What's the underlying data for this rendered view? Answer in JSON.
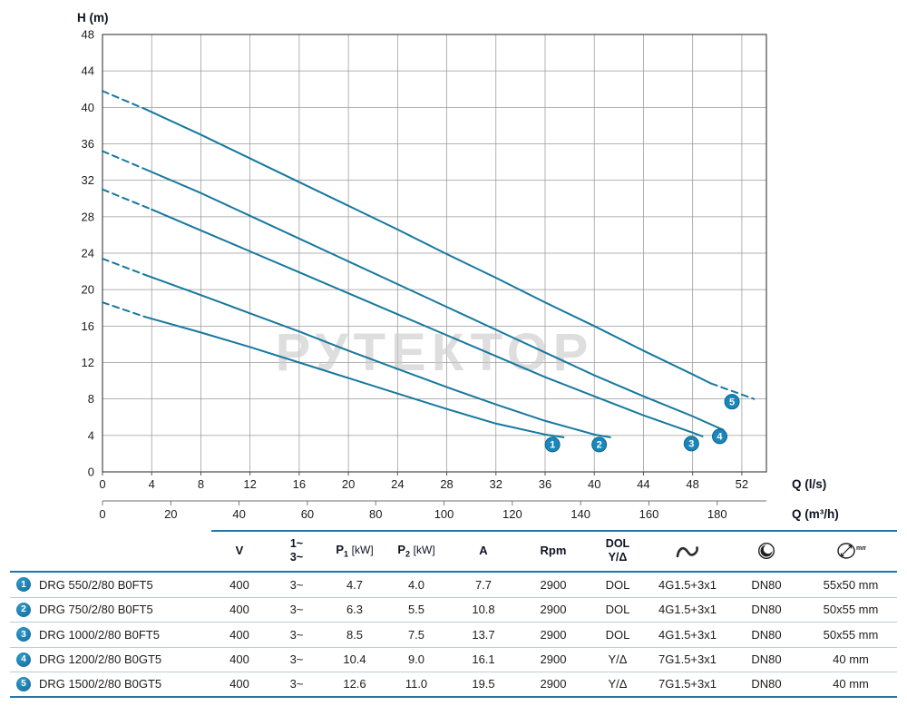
{
  "chart": {
    "y_label": "H (m)",
    "x_label_primary": "Q (l/s)",
    "x_label_secondary": "Q (m³/h)",
    "watermark": "РУТЕКТОР",
    "y_max": 48,
    "x_max": 54,
    "y_ticks": [
      0,
      4,
      8,
      12,
      16,
      20,
      24,
      28,
      32,
      36,
      40,
      44,
      48
    ],
    "x_ticks": [
      0,
      4,
      8,
      12,
      16,
      20,
      24,
      28,
      32,
      36,
      40,
      44,
      48,
      52
    ],
    "x2_ticks": [
      0,
      20,
      40,
      60,
      80,
      100,
      120,
      140,
      160,
      180
    ],
    "x2_to_lps": 0.27778,
    "curve_color": "#17789f",
    "badge_color": "#1a86ba"
  },
  "chart_data": {
    "type": "line",
    "title": "",
    "xlabel": "Q (l/s) / Q (m³/h)",
    "ylabel": "H (m)",
    "xlim": [
      0,
      54
    ],
    "ylim": [
      0,
      48
    ],
    "grid": true,
    "series": [
      {
        "name": "1",
        "model": "DRG 550/2/80 B0FT5",
        "marker": {
          "x": 36.6,
          "y": 3.0
        },
        "segments": [
          {
            "style": "dashed",
            "points": [
              [
                0,
                18.6
              ],
              [
                3.5,
                17.0
              ]
            ]
          },
          {
            "style": "solid",
            "points": [
              [
                3.5,
                17.0
              ],
              [
                8,
                15.3
              ],
              [
                12,
                13.7
              ],
              [
                16,
                12.0
              ],
              [
                20,
                10.3
              ],
              [
                24,
                8.6
              ],
              [
                28,
                6.9
              ],
              [
                32,
                5.3
              ],
              [
                36,
                4.1
              ],
              [
                37.5,
                3.8
              ]
            ]
          }
        ]
      },
      {
        "name": "2",
        "model": "DRG 750/2/80 B0FT5",
        "marker": {
          "x": 40.4,
          "y": 3.0
        },
        "segments": [
          {
            "style": "dashed",
            "points": [
              [
                0,
                23.4
              ],
              [
                3.5,
                21.6
              ]
            ]
          },
          {
            "style": "solid",
            "points": [
              [
                3.5,
                21.6
              ],
              [
                8,
                19.4
              ],
              [
                12,
                17.4
              ],
              [
                16,
                15.4
              ],
              [
                20,
                13.3
              ],
              [
                24,
                11.3
              ],
              [
                28,
                9.3
              ],
              [
                32,
                7.4
              ],
              [
                36,
                5.6
              ],
              [
                40,
                4.1
              ],
              [
                41.3,
                3.8
              ]
            ]
          }
        ]
      },
      {
        "name": "3",
        "model": "DRG 1000/2/80 B0FT5",
        "marker": {
          "x": 47.9,
          "y": 3.1
        },
        "segments": [
          {
            "style": "dashed",
            "points": [
              [
                0,
                31.0
              ],
              [
                4,
                28.8
              ]
            ]
          },
          {
            "style": "solid",
            "points": [
              [
                4,
                28.8
              ],
              [
                8,
                26.5
              ],
              [
                12,
                24.2
              ],
              [
                16,
                21.9
              ],
              [
                20,
                19.6
              ],
              [
                24,
                17.3
              ],
              [
                28,
                15.0
              ],
              [
                32,
                12.7
              ],
              [
                36,
                10.4
              ],
              [
                40,
                8.3
              ],
              [
                44,
                6.2
              ],
              [
                48,
                4.3
              ],
              [
                48.8,
                3.9
              ]
            ]
          }
        ]
      },
      {
        "name": "4",
        "model": "DRG 1200/2/80 B0GT5",
        "marker": {
          "x": 50.2,
          "y": 3.9
        },
        "segments": [
          {
            "style": "dashed",
            "points": [
              [
                0,
                35.2
              ],
              [
                3.5,
                33.2
              ]
            ]
          },
          {
            "style": "solid",
            "points": [
              [
                3.5,
                33.2
              ],
              [
                8,
                30.6
              ],
              [
                12,
                28.1
              ],
              [
                16,
                25.6
              ],
              [
                20,
                23.1
              ],
              [
                24,
                20.6
              ],
              [
                28,
                18.1
              ],
              [
                32,
                15.6
              ],
              [
                36,
                13.1
              ],
              [
                40,
                10.6
              ],
              [
                44,
                8.3
              ],
              [
                48,
                6.1
              ],
              [
                50.5,
                4.6
              ]
            ]
          }
        ]
      },
      {
        "name": "5",
        "model": "DRG 1500/2/80 B0GT5",
        "marker": {
          "x": 51.2,
          "y": 7.7
        },
        "segments": [
          {
            "style": "dashed",
            "points": [
              [
                0,
                41.8
              ],
              [
                3.5,
                39.8
              ]
            ]
          },
          {
            "style": "solid",
            "points": [
              [
                3.5,
                39.8
              ],
              [
                8,
                37.0
              ],
              [
                12,
                34.4
              ],
              [
                16,
                31.8
              ],
              [
                20,
                29.2
              ],
              [
                24,
                26.6
              ],
              [
                28,
                23.9
              ],
              [
                32,
                21.3
              ],
              [
                36,
                18.6
              ],
              [
                40,
                16.0
              ],
              [
                44,
                13.3
              ],
              [
                48,
                10.7
              ],
              [
                49.5,
                9.7
              ]
            ]
          },
          {
            "style": "dashed",
            "points": [
              [
                49.5,
                9.7
              ],
              [
                53,
                8.0
              ]
            ]
          }
        ]
      }
    ]
  },
  "table": {
    "headers": {
      "voltage": "V",
      "phase_1": "1~",
      "phase_3": "3~",
      "p_base": "P",
      "p1_sub": "1",
      "p2_sub": "2",
      "kw_unit": "[kW]",
      "current": "A",
      "rpm": "Rpm",
      "start_line1": "DOL",
      "start_line2": "Y/Δ",
      "cable_icon": "cable-icon",
      "impeller_icon": "impeller-icon",
      "free_passage_icon": "free-passage-icon",
      "free_passage_unit": "mm"
    },
    "rows": [
      {
        "num": "1",
        "model": "DRG 550/2/80 B0FT5",
        "voltage": "400",
        "phase": "3~",
        "p1": "4.7",
        "p2": "4.0",
        "current": "7.7",
        "rpm": "2900",
        "start": "DOL",
        "cable": "4G1.5+3x1",
        "outlet": "DN80",
        "passage": "55x50 mm"
      },
      {
        "num": "2",
        "model": "DRG 750/2/80 B0FT5",
        "voltage": "400",
        "phase": "3~",
        "p1": "6.3",
        "p2": "5.5",
        "current": "10.8",
        "rpm": "2900",
        "start": "DOL",
        "cable": "4G1.5+3x1",
        "outlet": "DN80",
        "passage": "50x55 mm"
      },
      {
        "num": "3",
        "model": "DRG 1000/2/80 B0FT5",
        "voltage": "400",
        "phase": "3~",
        "p1": "8.5",
        "p2": "7.5",
        "current": "13.7",
        "rpm": "2900",
        "start": "DOL",
        "cable": "4G1.5+3x1",
        "outlet": "DN80",
        "passage": "50x55 mm"
      },
      {
        "num": "4",
        "model": "DRG 1200/2/80 B0GT5",
        "voltage": "400",
        "phase": "3~",
        "p1": "10.4",
        "p2": "9.0",
        "current": "16.1",
        "rpm": "2900",
        "start": "Y/Δ",
        "cable": "7G1.5+3x1",
        "outlet": "DN80",
        "passage": "40 mm"
      },
      {
        "num": "5",
        "model": "DRG 1500/2/80 B0GT5",
        "voltage": "400",
        "phase": "3~",
        "p1": "12.6",
        "p2": "11.0",
        "current": "19.5",
        "rpm": "2900",
        "start": "Y/Δ",
        "cable": "7G1.5+3x1",
        "outlet": "DN80",
        "passage": "40 mm"
      }
    ]
  }
}
